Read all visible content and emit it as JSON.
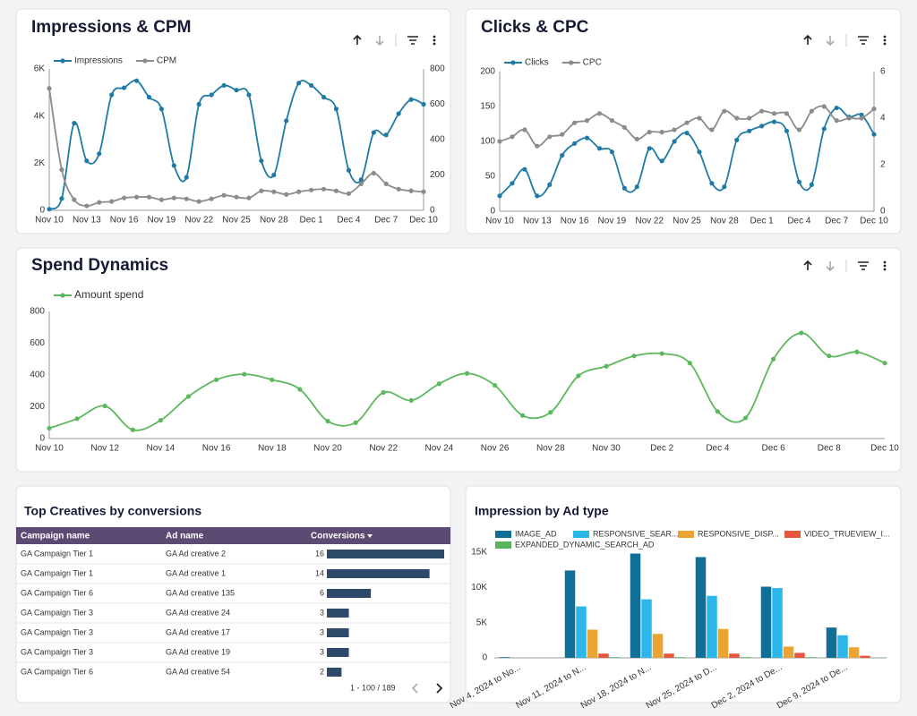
{
  "chart_data": [
    {
      "type": "line",
      "title": "Impressions & CPM",
      "categories": [
        "Nov 10",
        null,
        null,
        "Nov 13",
        null,
        null,
        "Nov 16",
        null,
        null,
        "Nov 19",
        null,
        null,
        "Nov 22",
        null,
        null,
        "Nov 25",
        null,
        null,
        "Nov 28",
        null,
        null,
        "Dec 1",
        null,
        null,
        "Dec 4",
        null,
        null,
        "Dec 7",
        null,
        null,
        "Dec 10"
      ],
      "series": [
        {
          "name": "Impressions",
          "color": "#1f7ba5",
          "values": [
            50,
            500,
            3700,
            2100,
            2400,
            4900,
            5200,
            5500,
            4800,
            4300,
            1900,
            1400,
            4500,
            4900,
            5300,
            5100,
            4900,
            2100,
            1500,
            3800,
            5400,
            5300,
            4800,
            4300,
            1700,
            1300,
            3300,
            3200,
            4100,
            4700,
            4500
          ]
        },
        {
          "name": "CPM",
          "color": "#8c8c8c",
          "axis": "y2",
          "values": [
            690,
            230,
            60,
            25,
            45,
            50,
            70,
            75,
            75,
            60,
            70,
            65,
            50,
            65,
            85,
            75,
            70,
            110,
            105,
            90,
            105,
            115,
            120,
            110,
            95,
            150,
            210,
            150,
            120,
            110,
            105
          ]
        }
      ],
      "ylim": [
        0,
        6000
      ],
      "yticks": [
        0,
        {
          "value": 2000,
          "label": "2K"
        },
        {
          "value": 4000,
          "label": "4K"
        },
        {
          "value": 6000,
          "label": "6K"
        }
      ],
      "y2lim": [
        0,
        800
      ],
      "y2ticks": [
        0,
        200,
        400,
        600,
        800
      ],
      "grid": false,
      "legend": "top-left"
    },
    {
      "type": "line",
      "title": "Clicks & CPC",
      "categories": [
        "Nov 10",
        null,
        null,
        "Nov 13",
        null,
        null,
        "Nov 16",
        null,
        null,
        "Nov 19",
        null,
        null,
        "Nov 22",
        null,
        null,
        "Nov 25",
        null,
        null,
        "Nov 28",
        null,
        null,
        "Dec 1",
        null,
        null,
        "Dec 4",
        null,
        null,
        "Dec 7",
        null,
        null,
        "Dec 10"
      ],
      "series": [
        {
          "name": "Clicks",
          "color": "#1f7ba5",
          "values": [
            22,
            40,
            60,
            22,
            38,
            80,
            97,
            105,
            90,
            85,
            33,
            35,
            90,
            72,
            100,
            112,
            85,
            40,
            35,
            102,
            115,
            122,
            128,
            115,
            42,
            38,
            118,
            148,
            135,
            138,
            110
          ]
        },
        {
          "name": "CPC",
          "color": "#8c8c8c",
          "axis": "y2",
          "values": [
            3.0,
            3.2,
            3.5,
            2.8,
            3.2,
            3.3,
            3.8,
            3.9,
            4.2,
            3.9,
            3.6,
            3.1,
            3.4,
            3.4,
            3.5,
            3.8,
            4.0,
            3.5,
            4.3,
            4.0,
            4.0,
            4.3,
            4.2,
            4.2,
            3.5,
            4.3,
            4.5,
            3.9,
            4.0,
            4.0,
            4.4
          ]
        }
      ],
      "ylim": [
        0,
        200
      ],
      "yticks": [
        0,
        50,
        100,
        150,
        200
      ],
      "y2lim": [
        0,
        6
      ],
      "y2ticks": [
        0,
        2,
        4,
        6
      ],
      "grid": false,
      "legend": "top-left"
    },
    {
      "type": "line",
      "title": "Spend Dynamics",
      "categories": [
        "Nov 10",
        null,
        "Nov 12",
        null,
        "Nov 14",
        null,
        "Nov 16",
        null,
        "Nov 18",
        null,
        "Nov 20",
        null,
        "Nov 22",
        null,
        "Nov 24",
        null,
        "Nov 26",
        null,
        "Nov 28",
        null,
        "Nov 30",
        null,
        "Dec 2",
        null,
        "Dec 4",
        null,
        "Dec 6",
        null,
        "Dec 8",
        null,
        "Dec 10"
      ],
      "series": [
        {
          "name": "Amount spend",
          "color": "#5cb85c",
          "values": [
            65,
            125,
            205,
            55,
            115,
            265,
            370,
            405,
            370,
            310,
            110,
            100,
            290,
            240,
            345,
            410,
            335,
            145,
            165,
            395,
            455,
            520,
            535,
            475,
            170,
            130,
            500,
            665,
            520,
            545,
            475
          ]
        }
      ],
      "ylim": [
        0,
        800
      ],
      "yticks": [
        0,
        200,
        400,
        600,
        800
      ],
      "grid": false,
      "legend": "top-left"
    },
    {
      "type": "bar",
      "title": "Impression by Ad type",
      "categories": [
        "Nov 4, 2024 to No...",
        "Nov 11, 2024 to N...",
        "Nov 18, 2024 to N...",
        "Nov 25, 2024 to D...",
        "Dec 2, 2024 to De...",
        "Dec 9, 2024 to De..."
      ],
      "series": [
        {
          "name": "IMAGE_AD",
          "color": "#106f96",
          "values": [
            100,
            12400,
            14800,
            14300,
            10100,
            4300
          ]
        },
        {
          "name": "RESPONSIVE_SEAR...",
          "color": "#2cb7ea",
          "values": [
            0,
            7300,
            8300,
            8800,
            9900,
            3200
          ]
        },
        {
          "name": "RESPONSIVE_DISP...",
          "color": "#eba433",
          "values": [
            0,
            4000,
            3400,
            4100,
            1600,
            1500
          ]
        },
        {
          "name": "VIDEO_TRUEVIEW_I...",
          "color": "#e4573d",
          "values": [
            0,
            600,
            600,
            600,
            700,
            300
          ]
        },
        {
          "name": "EXPANDED_DYNAMIC_SEARCH_AD",
          "color": "#57b65c",
          "values": [
            0,
            100,
            100,
            100,
            100,
            50
          ]
        }
      ],
      "ylim": [
        0,
        15500
      ],
      "yticks": [
        0,
        {
          "value": 5000,
          "label": "5K"
        },
        {
          "value": 10000,
          "label": "10K"
        },
        {
          "value": 15000,
          "label": "15K"
        }
      ],
      "grid": false,
      "legend": "top-left"
    }
  ],
  "table": {
    "title": "Top Creatives by conversions",
    "columns": [
      "Campaign name",
      "Ad name",
      "Conversions"
    ],
    "rows": [
      [
        "GA Campaign Tier 1",
        "GA Ad creative 2",
        16
      ],
      [
        "GA Campaign Tier 1",
        "GA Ad creative 1",
        14
      ],
      [
        "GA Campaign Tier 6",
        "GA Ad creative 135",
        6
      ],
      [
        "GA Campaign Tier 3",
        "GA Ad creative 24",
        3
      ],
      [
        "GA Campaign Tier 3",
        "GA Ad creative 17",
        3
      ],
      [
        "GA Campaign Tier 3",
        "GA Ad creative 19",
        3
      ],
      [
        "GA Campaign Tier 6",
        "GA Ad creative 54",
        2
      ]
    ],
    "bar_color": "#2d4a6b",
    "header_color": "#5b4a72",
    "pagination": "1 - 100 / 189"
  }
}
